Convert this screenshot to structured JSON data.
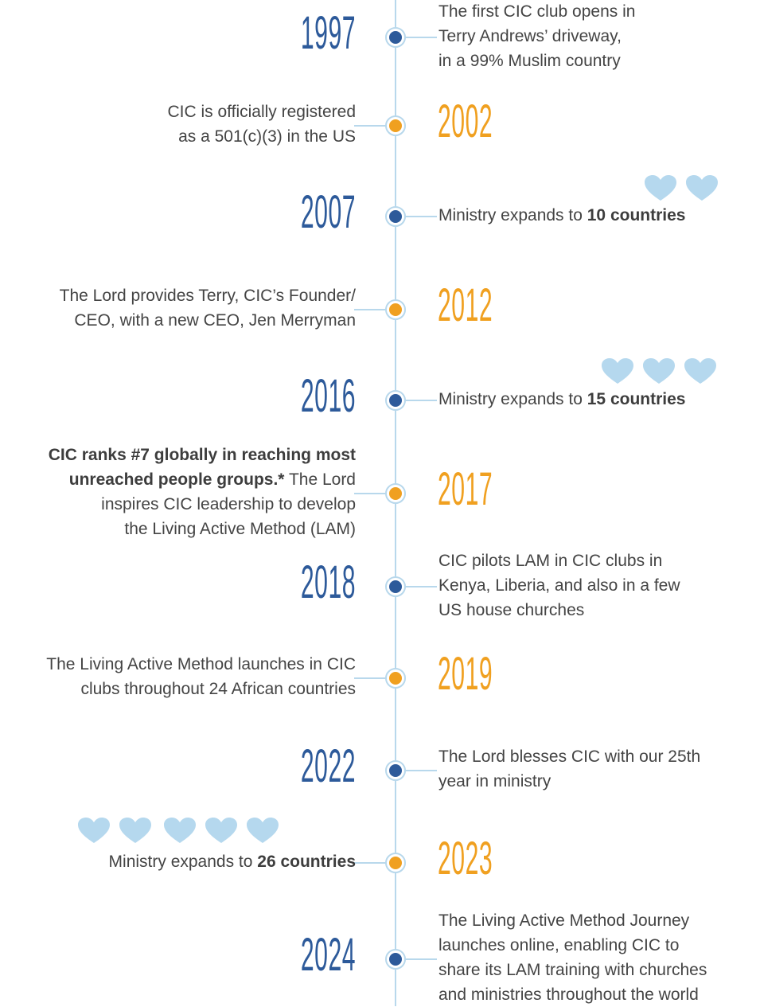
{
  "events": [
    {
      "year": "1997",
      "side": "right",
      "lines": [
        [
          {
            "text": "The first CIC club opens in"
          }
        ],
        [
          {
            "text": "Terry Andrews’ driveway,"
          }
        ],
        [
          {
            "text": "in a 99% Muslim country"
          }
        ]
      ]
    },
    {
      "year": "2002",
      "side": "left",
      "lines": [
        [
          {
            "text": "CIC is officially registered"
          }
        ],
        [
          {
            "text": "as a 501(c)(3) in the US"
          }
        ]
      ]
    },
    {
      "year": "2007",
      "side": "right",
      "lines": [
        [
          {
            "text": "Ministry expands to "
          },
          {
            "text": "10 countries",
            "bold": true
          }
        ]
      ]
    },
    {
      "year": "2012",
      "side": "left",
      "lines": [
        [
          {
            "text": "The Lord provides Terry, CIC’s Founder/"
          }
        ],
        [
          {
            "text": "CEO, with a new CEO, Jen Merryman"
          }
        ]
      ]
    },
    {
      "year": "2016",
      "side": "right",
      "lines": [
        [
          {
            "text": "Ministry expands to "
          },
          {
            "text": "15 countries",
            "bold": true
          }
        ]
      ]
    },
    {
      "year": "2017",
      "side": "left",
      "lines": [
        [
          {
            "text": "CIC ranks #7 globally in reaching most",
            "bold": true
          }
        ],
        [
          {
            "text": "unreached people groups.*",
            "bold": true
          },
          {
            "text": " The Lord"
          }
        ],
        [
          {
            "text": "inspires CIC leadership to develop"
          }
        ],
        [
          {
            "text": "the Living Active Method (LAM)"
          }
        ]
      ]
    },
    {
      "year": "2018",
      "side": "right",
      "lines": [
        [
          {
            "text": "CIC pilots LAM in CIC clubs in"
          }
        ],
        [
          {
            "text": "Kenya, Liberia, and also in a few"
          }
        ],
        [
          {
            "text": "US house churches"
          }
        ]
      ]
    },
    {
      "year": "2019",
      "side": "left",
      "lines": [
        [
          {
            "text": "The Living Active Method launches in CIC"
          }
        ],
        [
          {
            "text": "clubs throughout 24 African countries"
          }
        ]
      ]
    },
    {
      "year": "2022",
      "side": "right",
      "lines": [
        [
          {
            "text": "The Lord blesses CIC with our 25th"
          }
        ],
        [
          {
            "text": "year in ministry"
          }
        ]
      ]
    },
    {
      "year": "2023",
      "side": "left",
      "lines": [
        [
          {
            "text": "Ministry expands to "
          },
          {
            "text": "26 countries",
            "bold": true
          }
        ]
      ]
    },
    {
      "year": "2024",
      "side": "right",
      "lines": [
        [
          {
            "text": "The Living Active Method Journey"
          }
        ],
        [
          {
            "text": "launches online, enabling CIC to"
          }
        ],
        [
          {
            "text": "share its LAM training with churches"
          }
        ],
        [
          {
            "text": "and ministries throughout the world"
          }
        ]
      ]
    }
  ]
}
